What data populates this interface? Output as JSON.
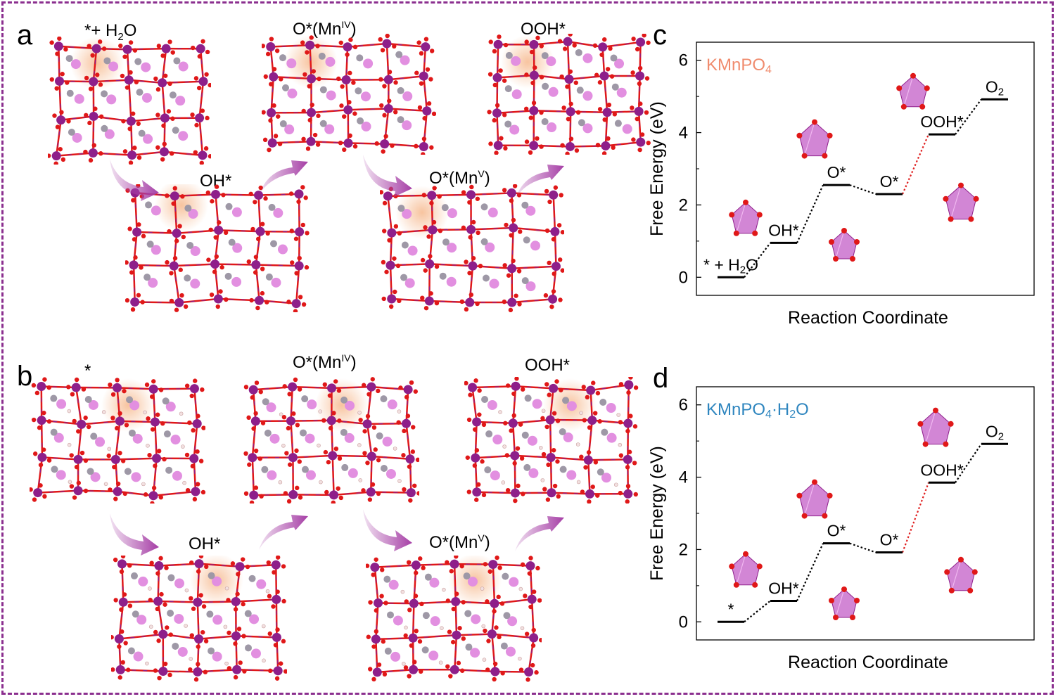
{
  "panels": {
    "a": {
      "letter": "a",
      "states": [
        {
          "main": "*+ H",
          "sub": "2",
          "tail": "O",
          "sup": ""
        },
        {
          "main": "OH*",
          "sub": "",
          "tail": "",
          "sup": ""
        },
        {
          "main": "O*(Mn",
          "sub": "",
          "tail": ")",
          "sup": "IV"
        },
        {
          "main": "O*(Mn",
          "sub": "",
          "tail": ")",
          "sup": "V"
        },
        {
          "main": "OOH*",
          "sub": "",
          "tail": "",
          "sup": ""
        }
      ]
    },
    "b": {
      "letter": "b",
      "states": [
        {
          "main": "*",
          "sub": "",
          "tail": "",
          "sup": ""
        },
        {
          "main": "OH*",
          "sub": "",
          "tail": "",
          "sup": ""
        },
        {
          "main": "O*(Mn",
          "sub": "",
          "tail": ")",
          "sup": "IV"
        },
        {
          "main": "O*(Mn",
          "sub": "",
          "tail": ")",
          "sup": "V"
        },
        {
          "main": "OOH*",
          "sub": "",
          "tail": "",
          "sup": ""
        }
      ]
    },
    "c": {
      "letter": "c"
    },
    "d": {
      "letter": "d"
    }
  },
  "colors": {
    "frame": "#8b2f8f",
    "mn": "#8e1f8a",
    "k": "#e28fe0",
    "p": "#9e98a6",
    "o": "#e01818",
    "h": "#f2e0e0",
    "highlight": "#f6b98e",
    "arrow": "#a63fa6",
    "kmnpo4_title": "#f08c6e",
    "hydrate_title": "#2f86bf",
    "step_dotted": "#000000",
    "rds_dotted": "#e02020"
  },
  "chart_data": [
    {
      "type": "line",
      "title": "KMnPO4",
      "xlabel": "Reaction Coordinate",
      "ylabel": "Free Energy (eV)",
      "ylim": [
        -0.5,
        6.5
      ],
      "yticks": [
        0,
        2,
        4,
        6
      ],
      "grid": false,
      "legend": "none",
      "steps": [
        {
          "label": "* + H2O",
          "value": 0.0
        },
        {
          "label": "OH*",
          "value": 0.95
        },
        {
          "label": "O*",
          "value": 2.55
        },
        {
          "label": "O*",
          "value": 2.3
        },
        {
          "label": "OOH*",
          "value": 3.95
        },
        {
          "label": "O2",
          "value": 4.92
        }
      ],
      "rate_determining_step": 4
    },
    {
      "type": "line",
      "title": "KMnPO4·H2O",
      "xlabel": "Reaction Coordinate",
      "ylabel": "Free Energy (eV)",
      "ylim": [
        -0.5,
        6.5
      ],
      "yticks": [
        0,
        2,
        4,
        6
      ],
      "grid": false,
      "legend": "none",
      "steps": [
        {
          "label": "*",
          "value": 0.0
        },
        {
          "label": "OH*",
          "value": 0.58
        },
        {
          "label": "O*",
          "value": 2.17
        },
        {
          "label": "O*",
          "value": 1.92
        },
        {
          "label": "OOH*",
          "value": 3.85
        },
        {
          "label": "O2",
          "value": 4.92
        }
      ],
      "rate_determining_step": 4
    }
  ]
}
